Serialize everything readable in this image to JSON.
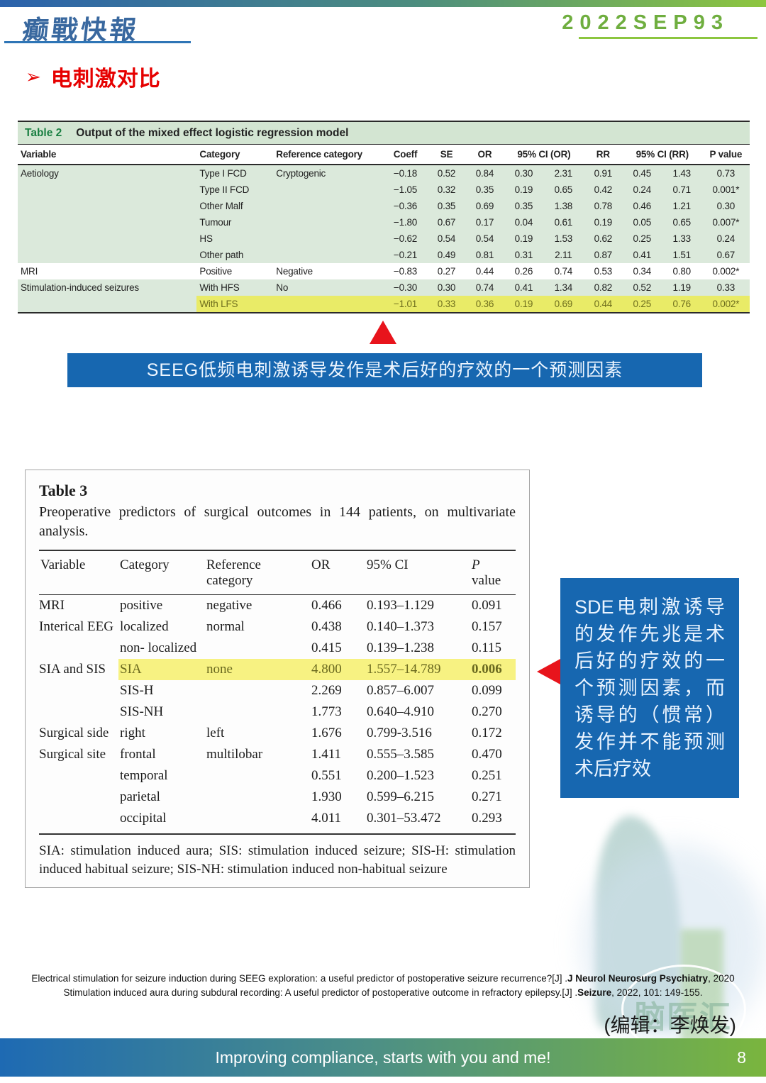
{
  "header": {
    "logo_text": "癫戰快報",
    "issue_code": "2022SEP93"
  },
  "section": {
    "bullet": "➢",
    "title": "电刺激对比"
  },
  "table2": {
    "label": "Table 2",
    "title": "Output of the mixed effect logistic regression model",
    "columns": [
      "Variable",
      "Category",
      "Reference category",
      "Coeff",
      "SE",
      "OR",
      "95% CI (OR)",
      "RR",
      "95% CI (RR)",
      "P value"
    ],
    "rows": [
      [
        "Aetiology",
        "Type I FCD",
        "Cryptogenic",
        "−0.18",
        "0.52",
        "0.84",
        "0.30",
        "2.31",
        "0.91",
        "0.45",
        "1.43",
        "0.73"
      ],
      [
        "",
        "Type II FCD",
        "",
        "−1.05",
        "0.32",
        "0.35",
        "0.19",
        "0.65",
        "0.42",
        "0.24",
        "0.71",
        "0.001*"
      ],
      [
        "",
        "Other Malf",
        "",
        "−0.36",
        "0.35",
        "0.69",
        "0.35",
        "1.38",
        "0.78",
        "0.46",
        "1.21",
        "0.30"
      ],
      [
        "",
        "Tumour",
        "",
        "−1.80",
        "0.67",
        "0.17",
        "0.04",
        "0.61",
        "0.19",
        "0.05",
        "0.65",
        "0.007*"
      ],
      [
        "",
        "HS",
        "",
        "−0.62",
        "0.54",
        "0.54",
        "0.19",
        "1.53",
        "0.62",
        "0.25",
        "1.33",
        "0.24"
      ],
      [
        "",
        "Other path",
        "",
        "−0.21",
        "0.49",
        "0.81",
        "0.31",
        "2.11",
        "0.87",
        "0.41",
        "1.51",
        "0.67"
      ],
      [
        "MRI",
        "Positive",
        "Negative",
        "−0.83",
        "0.27",
        "0.44",
        "0.26",
        "0.74",
        "0.53",
        "0.34",
        "0.80",
        "0.002*"
      ],
      [
        "Stimulation-induced seizures",
        "With HFS",
        "No",
        "−0.30",
        "0.30",
        "0.74",
        "0.41",
        "1.34",
        "0.82",
        "0.52",
        "1.19",
        "0.33"
      ],
      [
        "",
        "With LFS",
        "",
        "−1.01",
        "0.33",
        "0.36",
        "0.19",
        "0.69",
        "0.44",
        "0.25",
        "0.76",
        "0.002*"
      ]
    ],
    "row_styles": [
      "green",
      "green",
      "green",
      "green",
      "green",
      "green",
      "white",
      "green",
      "yellow"
    ]
  },
  "callout1": {
    "text": "SEEG低频电刺激诱导发作是术后好的疗效的一个预测因素"
  },
  "table3": {
    "label": "Table 3",
    "caption": "Preoperative predictors of surgical outcomes in 144 patients, on multivariate analysis.",
    "columns": [
      "Variable",
      "Category",
      "Reference category",
      "OR",
      "95% CI"
    ],
    "p_value_header": {
      "italic": "P",
      "rest": "value"
    },
    "rows": [
      [
        "MRI",
        "positive",
        "negative",
        "0.466",
        "0.193–1.129",
        "0.091"
      ],
      [
        "Interical EEG",
        "localized",
        "normal",
        "0.438",
        "0.140–1.373",
        "0.157"
      ],
      [
        "",
        "non- localized",
        "",
        "0.415",
        "0.139–1.238",
        "0.115"
      ],
      [
        "SIA and SIS",
        "SIA",
        "none",
        "4.800",
        "1.557–14.789",
        "0.006"
      ],
      [
        "",
        "SIS-H",
        "",
        "2.269",
        "0.857–6.007",
        "0.099"
      ],
      [
        "",
        "SIS-NH",
        "",
        "1.773",
        "0.640–4.910",
        "0.270"
      ],
      [
        "Surgical side",
        "right",
        "left",
        "1.676",
        "0.799-3.516",
        "0.172"
      ],
      [
        "Surgical site",
        "frontal",
        "multilobar",
        "1.411",
        "0.555–3.585",
        "0.470"
      ],
      [
        "",
        "temporal",
        "",
        "0.551",
        "0.200–1.523",
        "0.251"
      ],
      [
        "",
        "parietal",
        "",
        "1.930",
        "0.599–6.215",
        "0.271"
      ],
      [
        "",
        "occipital",
        "",
        "4.011",
        "0.301–53.472",
        "0.293"
      ]
    ],
    "highlight_row": 3,
    "footnote": "SIA: stimulation induced aura; SIS: stimulation induced seizure; SIS-H: stimu­lation induced habitual seizure; SIS-NH: stimulation induced non-habitual seizure"
  },
  "callout2": {
    "text": "SDE电刺激诱导的发作先兆是术后好的疗效的一个预测因素，而诱导的（惯常）发作并不能预测术后疗效"
  },
  "citations": [
    {
      "pre": "Electrical stimulation for seizure induction during SEEG exploration: a useful predictor of postoperative seizure recurrence?[J] .",
      "journal": "J Neurol Neurosurg Psychiatry",
      "post": ", 2020"
    },
    {
      "pre": "Stimulation induced aura during subdural recording: A useful predictor of postoperative outcome in refractory epilepsy.[J] .",
      "journal": "Seizure",
      "post": ", 2022, 101: 149-155."
    }
  ],
  "editor_note": "(编辑：李焕发)",
  "footer": {
    "slogan": "Improving compliance, starts with you and me!",
    "page_number": "8"
  },
  "watermark_text": "脑医汇",
  "colors": {
    "accent_blue": "#1767b0",
    "accent_red": "#e8141c",
    "table2_green": "#dbe9db",
    "highlight_yellow": "#e9eb67",
    "footer_gradient_left": "#1e6ab3",
    "footer_gradient_right": "#7ab53e"
  }
}
